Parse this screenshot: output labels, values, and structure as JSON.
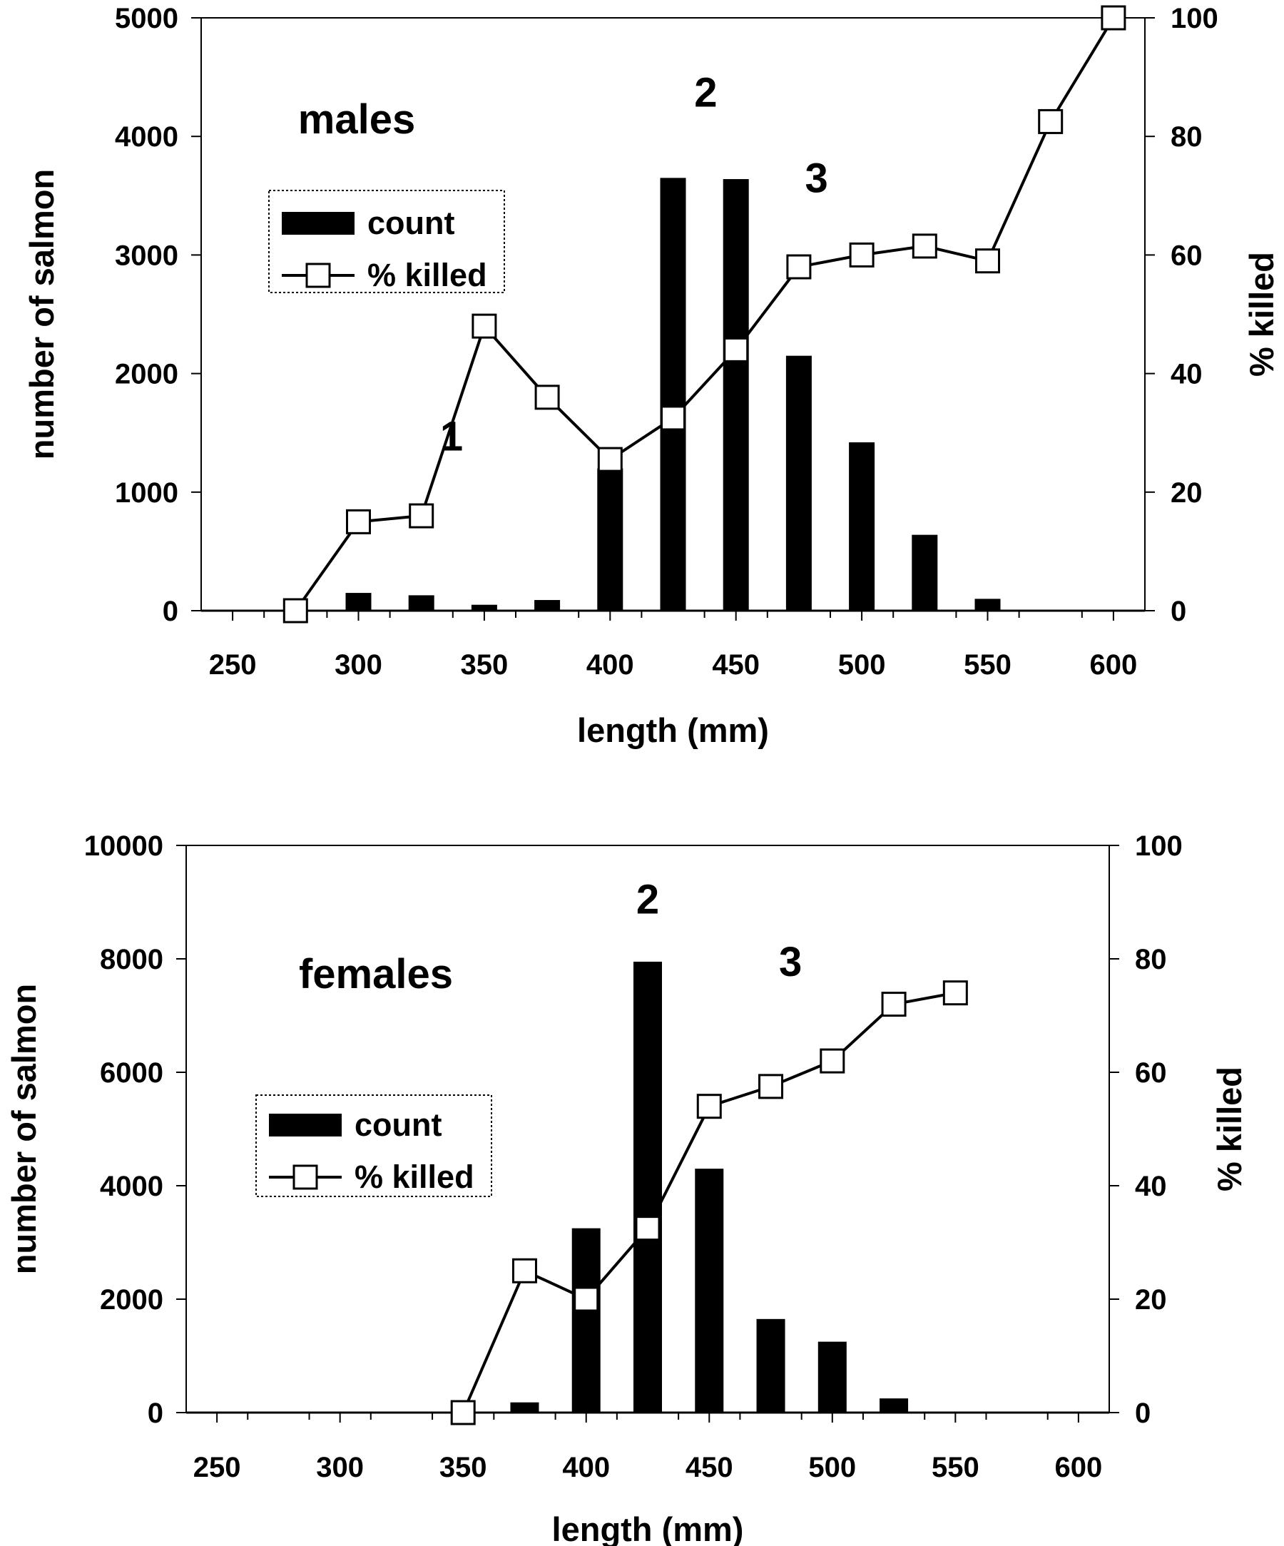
{
  "chart_data": [
    {
      "type": "bar",
      "panel_label": "males",
      "xlabel": "length (mm)",
      "ylabel": "number of salmon",
      "y2label": "% killed",
      "x_ticks": [
        "250",
        "300",
        "350",
        "400",
        "450",
        "500",
        "550",
        "600"
      ],
      "y_ticks": [
        "0",
        "1000",
        "2000",
        "3000",
        "4000",
        "5000"
      ],
      "y2_ticks": [
        "0",
        "20",
        "40",
        "60",
        "80",
        "100"
      ],
      "xlim": [
        237.5,
        612.5
      ],
      "ylim": [
        0,
        5000
      ],
      "y2lim": [
        0,
        100
      ],
      "grid": false,
      "legend": {
        "position": "upper-left",
        "entries": [
          "count",
          "% killed"
        ]
      },
      "series": [
        {
          "name": "count",
          "kind": "bar",
          "x": [
            300,
            325,
            350,
            375,
            400,
            425,
            450,
            475,
            500,
            525,
            550
          ],
          "values": [
            150,
            130,
            50,
            90,
            1200,
            3650,
            3640,
            2150,
            1420,
            640,
            100
          ]
        },
        {
          "name": "% killed",
          "kind": "line",
          "axis": "right",
          "x": [
            275,
            300,
            325,
            350,
            375,
            400,
            425,
            450,
            475,
            500,
            525,
            550,
            575,
            600
          ],
          "values": [
            0,
            15,
            16,
            48,
            36,
            25.5,
            32.5,
            44,
            58,
            60,
            61.5,
            59,
            82.5,
            100
          ]
        }
      ],
      "annotations": [
        {
          "text": "1",
          "x": 337,
          "y": 1350
        },
        {
          "text": "2",
          "x": 438,
          "y": 4250
        },
        {
          "text": "3",
          "x": 482,
          "y": 3530
        }
      ]
    },
    {
      "type": "bar",
      "panel_label": "females",
      "xlabel": "length (mm)",
      "ylabel": "number of salmon",
      "y2label": "% killed",
      "x_ticks": [
        "250",
        "300",
        "350",
        "400",
        "450",
        "500",
        "550",
        "600"
      ],
      "y_ticks": [
        "0",
        "2000",
        "4000",
        "6000",
        "8000",
        "10000"
      ],
      "y2_ticks": [
        "0",
        "20",
        "40",
        "60",
        "80",
        "100"
      ],
      "xlim": [
        237.5,
        612.5
      ],
      "ylim": [
        0,
        10000
      ],
      "y2lim": [
        0,
        100
      ],
      "grid": false,
      "legend": {
        "position": "center-left",
        "entries": [
          "count",
          "% killed"
        ]
      },
      "series": [
        {
          "name": "count",
          "kind": "bar",
          "x": [
            375,
            400,
            425,
            450,
            475,
            500,
            525
          ],
          "values": [
            180,
            3250,
            7950,
            4300,
            1650,
            1250,
            250
          ]
        },
        {
          "name": "% killed",
          "kind": "line",
          "axis": "right",
          "x": [
            350,
            375,
            400,
            425,
            450,
            475,
            500,
            525,
            550
          ],
          "values": [
            0,
            25,
            20,
            32.5,
            54,
            57.5,
            62,
            72,
            74
          ]
        }
      ],
      "annotations": [
        {
          "text": "2",
          "x": 425,
          "y": 8800
        },
        {
          "text": "3",
          "x": 483,
          "y": 7700
        }
      ]
    }
  ]
}
